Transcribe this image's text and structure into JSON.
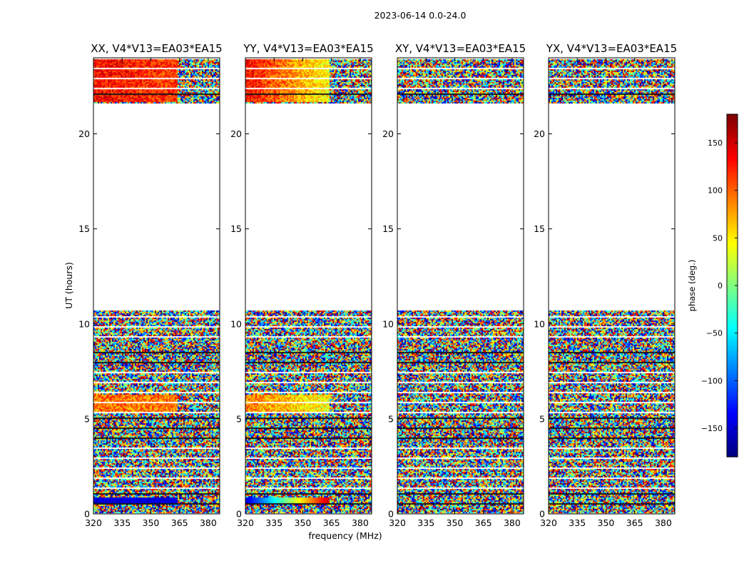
{
  "chart_data": {
    "type": "heatmap",
    "suptitle": "2023-06-14 0.0-24.0",
    "xlabel": "frequency (MHz)",
    "ylabel": "UT (hours)",
    "xlim": [
      320,
      386
    ],
    "ylim": [
      0,
      24
    ],
    "xticks": [
      320,
      335,
      350,
      365,
      380
    ],
    "yticks": [
      0,
      5,
      10,
      15,
      20
    ],
    "panels": [
      {
        "title": "XX, V4*V13=EA03*EA15",
        "kind": "XX"
      },
      {
        "title": "YY, V4*V13=EA03*EA15",
        "kind": "YY"
      },
      {
        "title": "XY, V4*V13=EA03*EA15",
        "kind": "XY"
      },
      {
        "title": "YX, V4*V13=EA03*EA15",
        "kind": "YX"
      }
    ],
    "data_time_ranges_hours": [
      [
        0,
        10.7
      ],
      [
        21.6,
        24
      ]
    ],
    "coherent_features": [
      {
        "panels": [
          "XX",
          "YY"
        ],
        "ut_range": [
          5.4,
          6.3
        ],
        "description": "orange/yellow phase band"
      },
      {
        "panels": [
          "XX",
          "YY"
        ],
        "ut_range": [
          0.5,
          0.9
        ],
        "description": "blue to red phase band"
      },
      {
        "panels": [
          "XX",
          "YY"
        ],
        "ut_range": [
          21.7,
          24
        ],
        "description": "red/orange phase bands"
      }
    ],
    "colorbar": {
      "label": "phase (deg.)",
      "range": [
        -180,
        180
      ],
      "ticks": [
        -150,
        -100,
        -50,
        0,
        50,
        100,
        150
      ],
      "tick_labels": [
        "−150",
        "−100",
        "−50",
        "0",
        "50",
        "100",
        "150"
      ],
      "colormap": "jet"
    }
  }
}
